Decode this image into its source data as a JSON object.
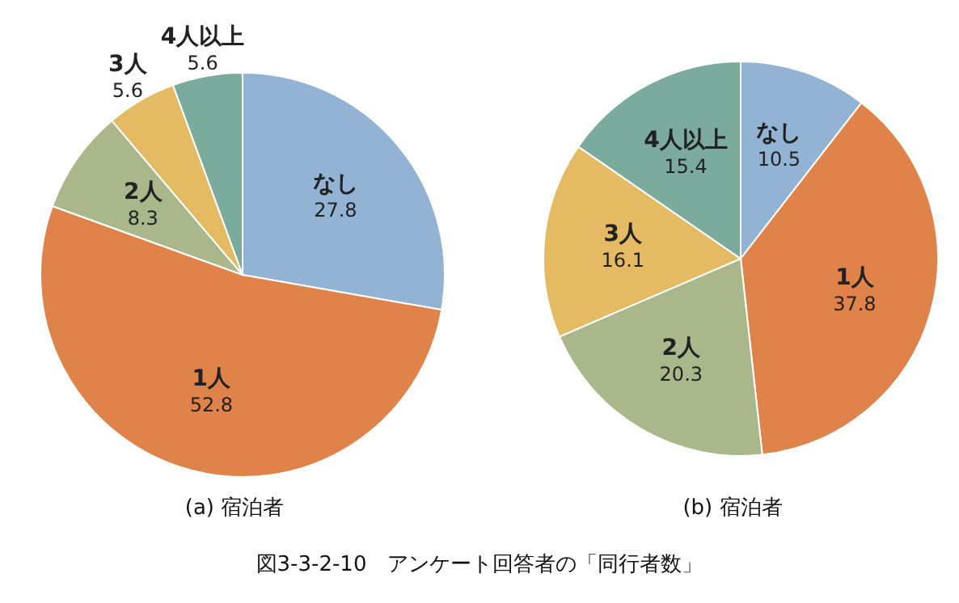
{
  "chart_data": [
    {
      "type": "pie",
      "title": "(a)  宿泊者",
      "categories": [
        "なし",
        "1人",
        "2人",
        "3人",
        "4人以上"
      ],
      "values": [
        27.8,
        52.8,
        8.3,
        5.6,
        5.6
      ],
      "colors": [
        "#93b3d4",
        "#e0834a",
        "#a9b78b",
        "#e4ba62",
        "#7aab9c"
      ],
      "data_labels": true,
      "legend": false,
      "annotations": [
        "図3-3-2-10　アンケート回答者の「同行者数」"
      ]
    },
    {
      "type": "pie",
      "title": "(b)  宿泊者",
      "categories": [
        "なし",
        "1人",
        "2人",
        "3人",
        "4人以上"
      ],
      "values": [
        10.5,
        37.8,
        20.3,
        16.1,
        15.4
      ],
      "colors": [
        "#93b3d4",
        "#e0834a",
        "#a9b78b",
        "#e4ba62",
        "#7aab9c"
      ],
      "data_labels": true,
      "legend": false
    }
  ]
}
